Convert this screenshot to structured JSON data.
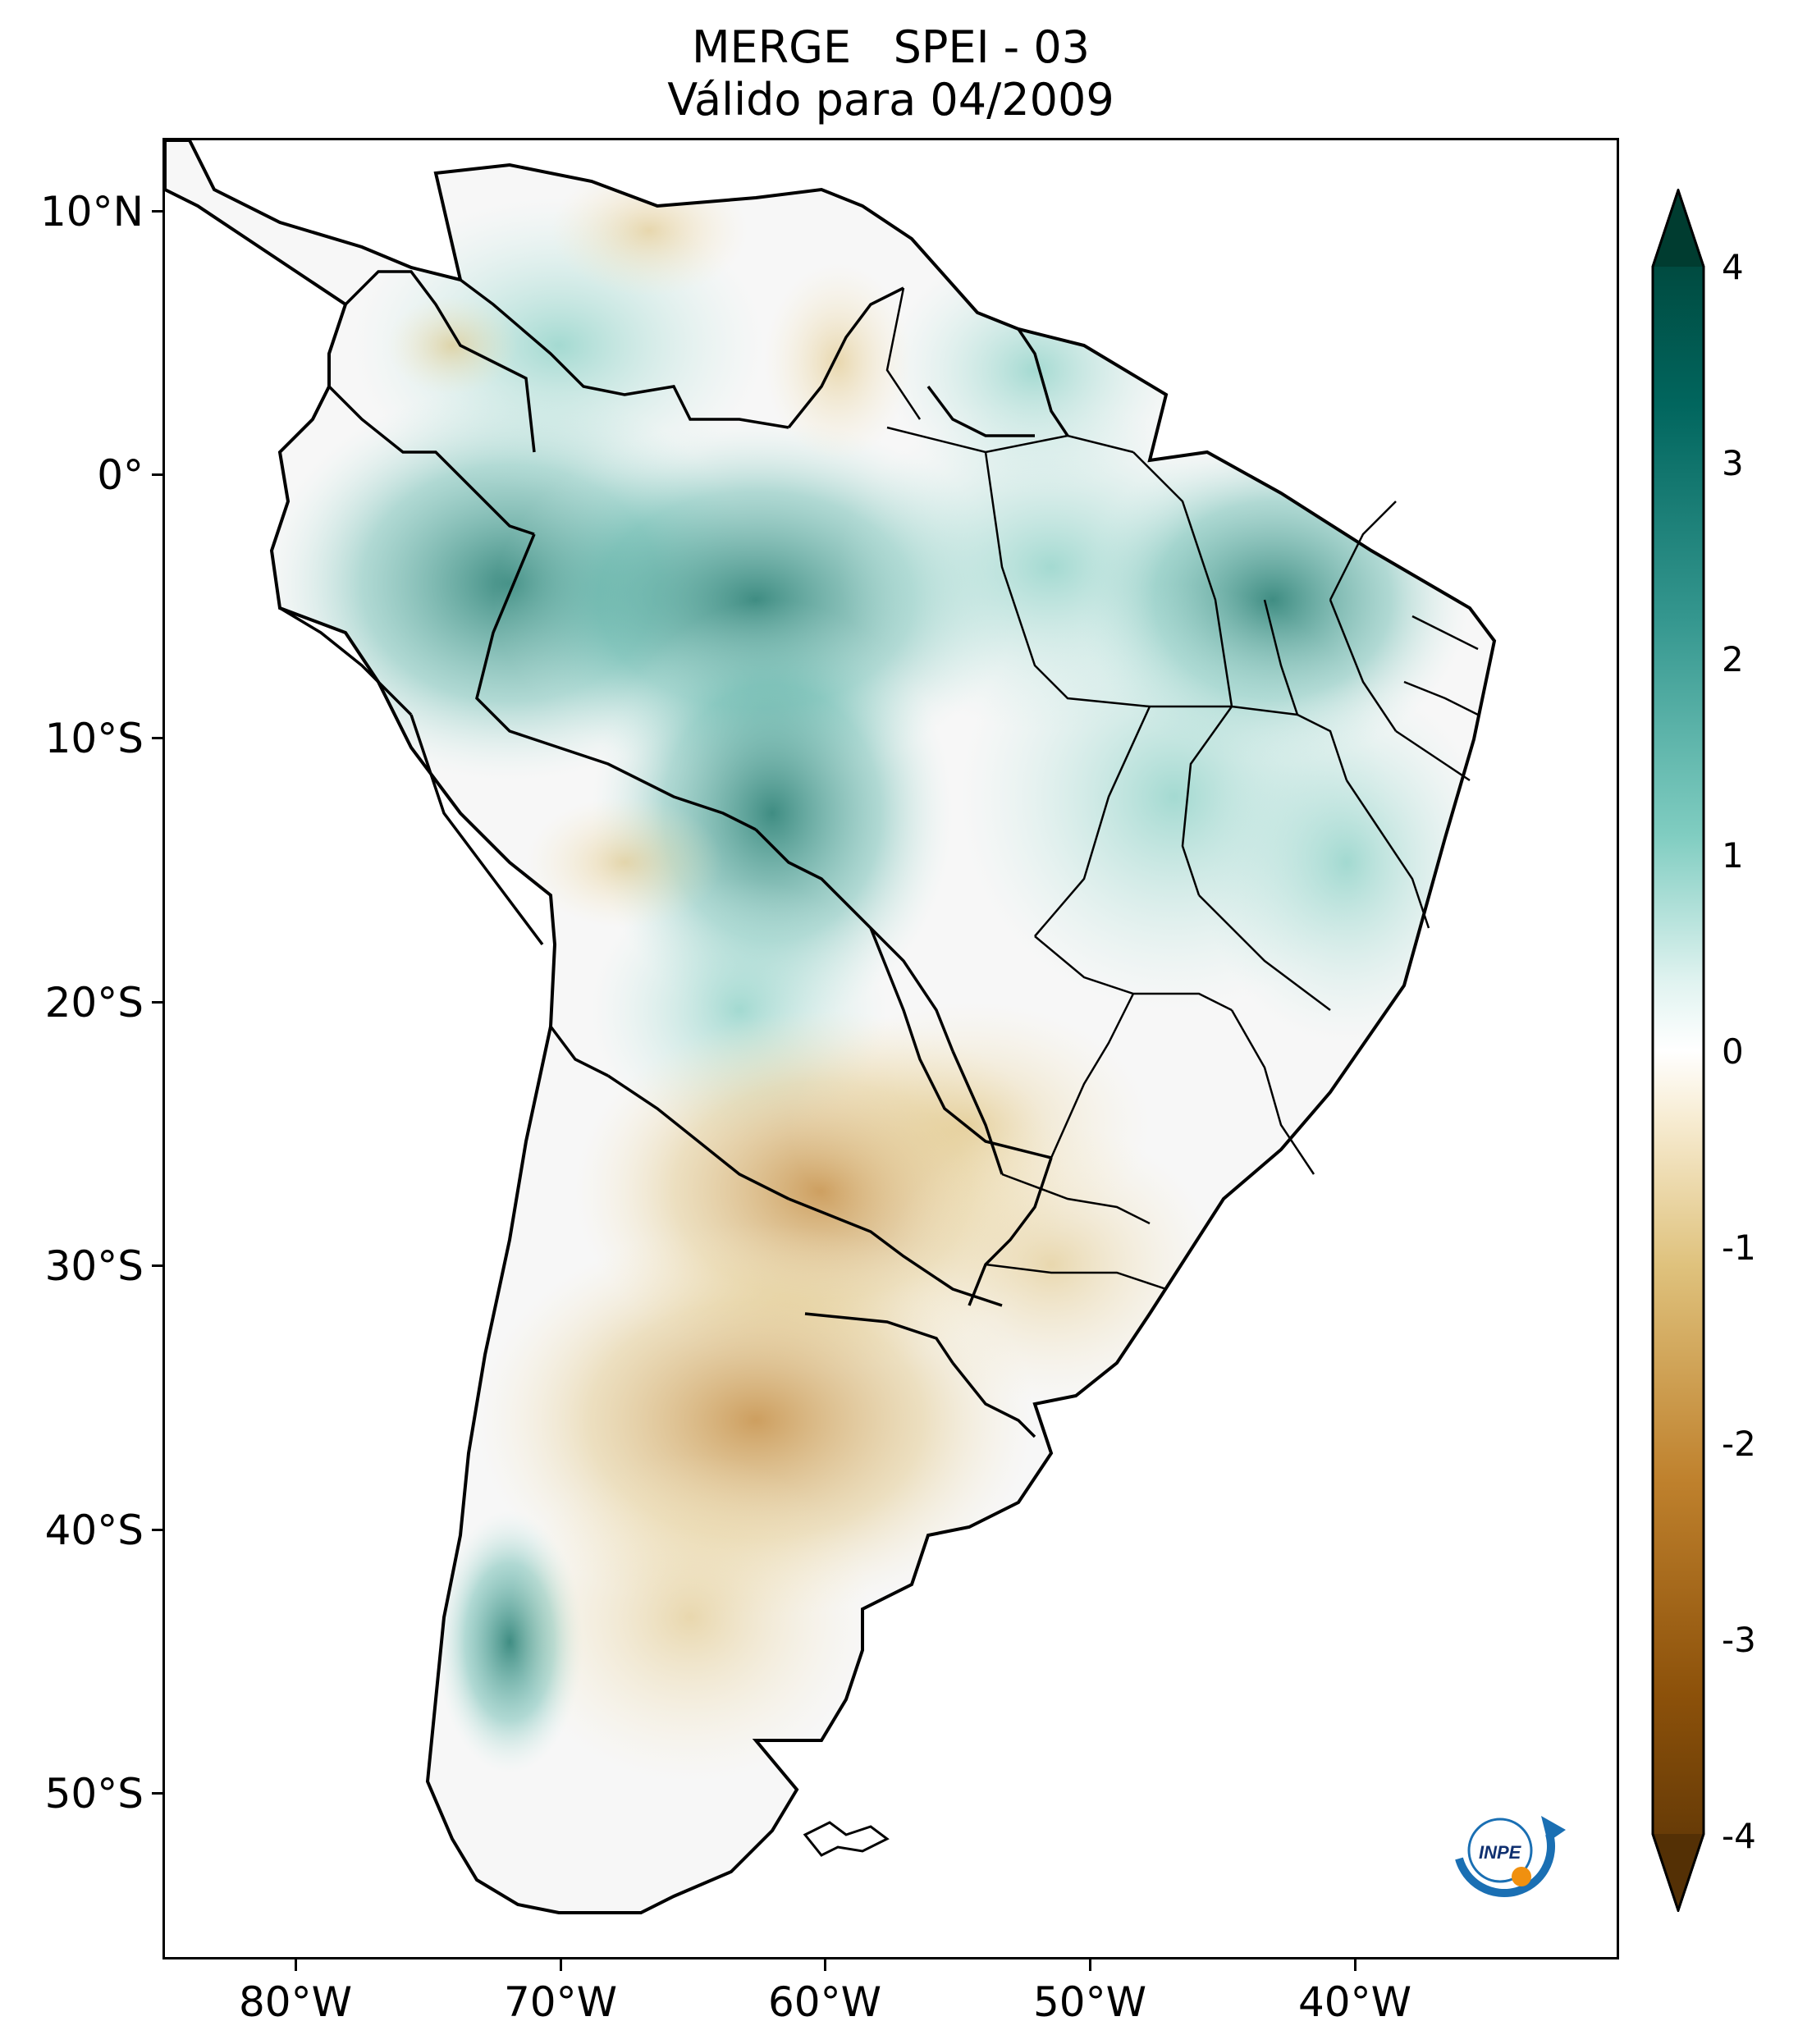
{
  "title": {
    "line1": "MERGE   SPEI - 03",
    "line2": "Válido para 04/2009"
  },
  "map": {
    "region": "South America",
    "variable": "SPEI - 03",
    "extent": {
      "lon": [
        -85,
        -30
      ],
      "lat": [
        -56,
        13
      ]
    },
    "lat_ticks": [
      {
        "value": 10,
        "label": "10°N"
      },
      {
        "value": 0,
        "label": "0°"
      },
      {
        "value": -10,
        "label": "10°S"
      },
      {
        "value": -20,
        "label": "20°S"
      },
      {
        "value": -30,
        "label": "30°S"
      },
      {
        "value": -40,
        "label": "40°S"
      },
      {
        "value": -50,
        "label": "50°S"
      }
    ],
    "lon_ticks": [
      {
        "value": -80,
        "label": "80°W"
      },
      {
        "value": -70,
        "label": "70°W"
      },
      {
        "value": -60,
        "label": "60°W"
      },
      {
        "value": -50,
        "label": "50°W"
      },
      {
        "value": -40,
        "label": "40°W"
      }
    ]
  },
  "colorbar": {
    "range": [
      -4,
      4
    ],
    "ticks": [
      "4",
      "3",
      "2",
      "1",
      "0",
      "-1",
      "-2",
      "-3",
      "-4"
    ],
    "colors": {
      "wet_max": "#003c30",
      "wet_mid": "#35978f",
      "wet_low": "#c7eae5",
      "neutral": "#f5f5f5",
      "dry_low": "#f6e8c3",
      "dry_mid": "#bf812d",
      "dry_max": "#543005"
    }
  },
  "logo": {
    "text": "INPE"
  }
}
